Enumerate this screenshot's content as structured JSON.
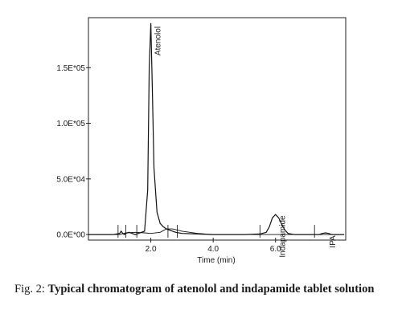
{
  "caption": {
    "label": "Fig. 2:",
    "text": "Typical chromatogram of atenolol and indapamide tablet solution"
  },
  "chart_data": {
    "type": "line",
    "title": "",
    "xlabel": "Time (min)",
    "ylabel": "",
    "xlim": [
      0.0,
      8.25
    ],
    "ylim": [
      -0.05,
      1.95
    ],
    "x_ticks": [
      {
        "value": 2.0,
        "label": "2.0"
      },
      {
        "value": 4.0,
        "label": "4.0"
      },
      {
        "value": 6.0,
        "label": "6.0"
      }
    ],
    "y_ticks": [
      {
        "value": 0.0,
        "label": "0.0E*00"
      },
      {
        "value": 0.5,
        "label": "5.0E*04"
      },
      {
        "value": 1.0,
        "label": "1.0E*05"
      },
      {
        "value": 1.5,
        "label": "1.5E*05"
      }
    ],
    "y_scale_note": "y values in units of 1.0E*05",
    "grid": false,
    "series": [
      {
        "x": [
          0.0,
          0.8,
          1.0,
          1.05,
          1.1,
          1.15,
          1.2,
          1.3,
          1.5,
          1.6,
          1.8,
          1.9,
          1.95,
          2.0,
          2.05,
          2.1,
          2.2,
          2.3,
          2.4,
          2.5,
          2.6,
          2.7,
          2.8,
          3.0,
          3.5,
          4.0,
          4.5,
          5.0,
          5.5,
          5.7,
          5.8,
          5.9,
          6.0,
          6.1,
          6.2,
          6.3,
          6.4,
          6.6,
          7.0,
          7.4,
          7.5,
          7.6,
          7.7,
          7.8,
          8.2
        ],
        "values": [
          0.0,
          0.0,
          0.01,
          0.03,
          0.01,
          0.0,
          0.01,
          0.02,
          0.0,
          0.01,
          0.03,
          0.4,
          1.5,
          1.9,
          1.3,
          0.6,
          0.2,
          0.1,
          0.07,
          0.05,
          0.04,
          0.03,
          0.02,
          0.01,
          0.005,
          0.0,
          0.0,
          0.0,
          0.005,
          0.02,
          0.07,
          0.15,
          0.18,
          0.15,
          0.09,
          0.04,
          0.01,
          0.0,
          0.0,
          0.0,
          0.01,
          0.015,
          0.01,
          0.0,
          0.0
        ]
      },
      {
        "x": [
          0.0,
          1.0,
          1.2,
          1.5,
          1.8,
          2.0,
          2.3,
          2.5,
          2.7,
          3.0,
          3.5,
          4.0,
          4.5,
          5.0,
          6.0,
          7.0,
          8.2
        ],
        "values": [
          0.0,
          0.0,
          0.015,
          0.02,
          0.015,
          0.01,
          0.02,
          0.05,
          0.05,
          0.03,
          0.01,
          0.0,
          0.0,
          0.0,
          0.0,
          0.0,
          0.0
        ]
      }
    ],
    "annotations": [
      {
        "text": "Atenolol",
        "x": 2.0,
        "y": 1.9,
        "orientation": "vertical"
      },
      {
        "text": "Indapamide",
        "x": 6.0,
        "y": 0.2,
        "orientation": "vertical"
      },
      {
        "text": "IPA",
        "x": 7.6,
        "y": 0.02,
        "orientation": "vertical"
      }
    ],
    "event_marks": [
      0.95,
      1.2,
      1.55,
      2.55,
      2.85,
      5.5,
      7.25
    ]
  }
}
